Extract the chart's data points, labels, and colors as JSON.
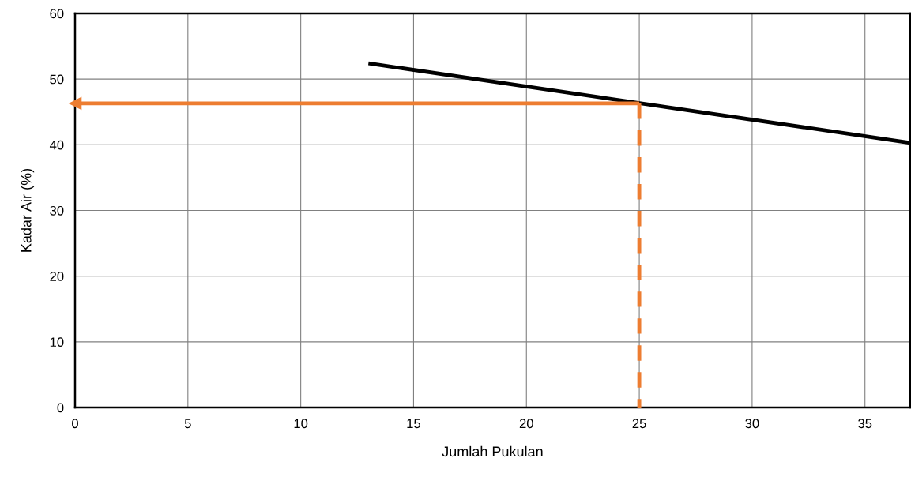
{
  "chart_data": {
    "type": "line",
    "xlabel": "Jumlah Pukulan",
    "ylabel": "Kadar Air (%)",
    "series": [
      {
        "color": "#000000",
        "x": [
          13,
          37
        ],
        "values": [
          52.4,
          40.3
        ],
        "line_style": "solid"
      },
      {
        "color": "#ed7d31",
        "x": [
          25,
          0
        ],
        "values": [
          46.3,
          46.3
        ],
        "line_style": "solid",
        "marker": "triangle"
      },
      {
        "color": "#ed7d31",
        "x": [
          25,
          25
        ],
        "values": [
          46.3,
          0
        ],
        "line_style": "dashed"
      }
    ],
    "xlim": [
      0,
      37
    ],
    "xticks": [
      0,
      5,
      10,
      15,
      20,
      25,
      30,
      35
    ],
    "ylim": [
      0,
      60
    ],
    "yticks": [
      0,
      10,
      20,
      30,
      40,
      50,
      60
    ],
    "grid": true,
    "marker": "none"
  }
}
